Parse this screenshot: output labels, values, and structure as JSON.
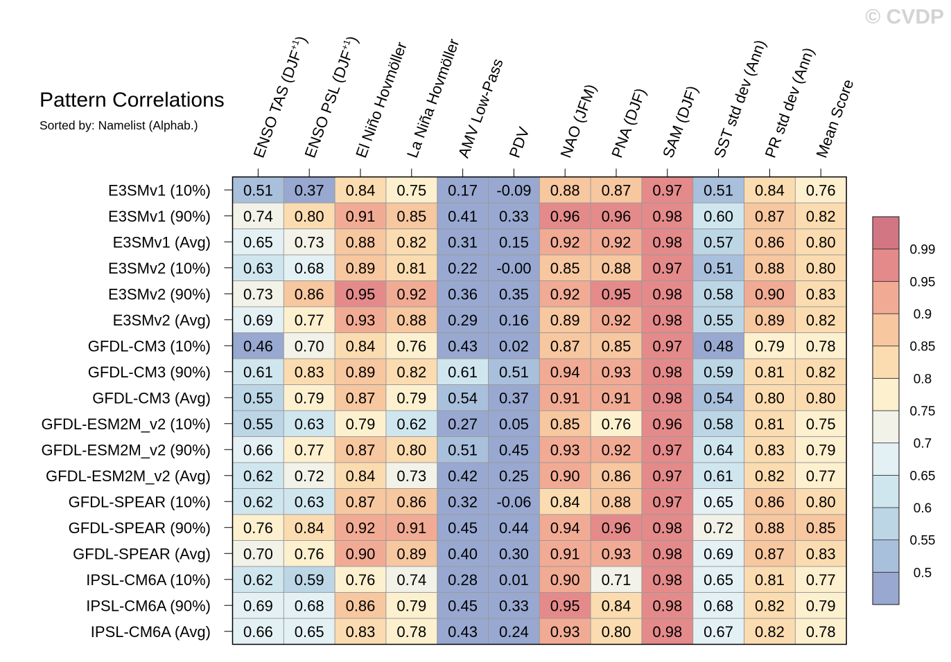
{
  "watermark": "© CVDP",
  "chart_data": {
    "type": "heatmap",
    "title": "Pattern Correlations",
    "subtitle": "Sorted by: Namelist (Alphab.)",
    "columns": [
      {
        "text": "ENSO TAS (DJF",
        "sup": "+1",
        "post": ")"
      },
      {
        "text": "ENSO PSL (DJF",
        "sup": "+1",
        "post": ")"
      },
      {
        "text": "El Niño Hovmöller"
      },
      {
        "text": "La Niña Hovmöller"
      },
      {
        "text": "AMV Low-Pass"
      },
      {
        "text": "PDV"
      },
      {
        "text": "NAO (JFM)"
      },
      {
        "text": "PNA (DJF)"
      },
      {
        "text": "SAM (DJF)"
      },
      {
        "text": "SST std dev (Ann)"
      },
      {
        "text": "PR std dev (Ann)"
      },
      {
        "text": "Mean Score"
      }
    ],
    "rows": [
      "E3SMv1 (10%)",
      "E3SMv1 (90%)",
      "E3SMv1 (Avg)",
      "E3SMv2 (10%)",
      "E3SMv2 (90%)",
      "E3SMv2 (Avg)",
      "GFDL-CM3 (10%)",
      "GFDL-CM3 (90%)",
      "GFDL-CM3 (Avg)",
      "GFDL-ESM2M_v2 (10%)",
      "GFDL-ESM2M_v2 (90%)",
      "GFDL-ESM2M_v2 (Avg)",
      "GFDL-SPEAR (10%)",
      "GFDL-SPEAR (90%)",
      "GFDL-SPEAR (Avg)",
      "IPSL-CM6A (10%)",
      "IPSL-CM6A (90%)",
      "IPSL-CM6A (Avg)"
    ],
    "values": [
      [
        "0.51",
        "0.37",
        "0.84",
        "0.75",
        "0.17",
        "-0.09",
        "0.88",
        "0.87",
        "0.97",
        "0.51",
        "0.84",
        "0.76"
      ],
      [
        "0.74",
        "0.80",
        "0.91",
        "0.85",
        "0.41",
        "0.33",
        "0.96",
        "0.96",
        "0.98",
        "0.60",
        "0.87",
        "0.82"
      ],
      [
        "0.65",
        "0.73",
        "0.88",
        "0.82",
        "0.31",
        "0.15",
        "0.92",
        "0.92",
        "0.98",
        "0.57",
        "0.86",
        "0.80"
      ],
      [
        "0.63",
        "0.68",
        "0.89",
        "0.81",
        "0.22",
        "-0.00",
        "0.85",
        "0.88",
        "0.97",
        "0.51",
        "0.88",
        "0.80"
      ],
      [
        "0.73",
        "0.86",
        "0.95",
        "0.92",
        "0.36",
        "0.35",
        "0.92",
        "0.95",
        "0.98",
        "0.58",
        "0.90",
        "0.83"
      ],
      [
        "0.69",
        "0.77",
        "0.93",
        "0.88",
        "0.29",
        "0.16",
        "0.89",
        "0.92",
        "0.98",
        "0.55",
        "0.89",
        "0.82"
      ],
      [
        "0.46",
        "0.70",
        "0.84",
        "0.76",
        "0.43",
        "0.02",
        "0.87",
        "0.85",
        "0.97",
        "0.48",
        "0.79",
        "0.78"
      ],
      [
        "0.61",
        "0.83",
        "0.89",
        "0.82",
        "0.61",
        "0.51",
        "0.94",
        "0.93",
        "0.98",
        "0.59",
        "0.81",
        "0.82"
      ],
      [
        "0.55",
        "0.79",
        "0.87",
        "0.79",
        "0.54",
        "0.37",
        "0.91",
        "0.91",
        "0.98",
        "0.54",
        "0.80",
        "0.80"
      ],
      [
        "0.55",
        "0.63",
        "0.79",
        "0.62",
        "0.27",
        "0.05",
        "0.85",
        "0.76",
        "0.96",
        "0.58",
        "0.81",
        "0.75"
      ],
      [
        "0.66",
        "0.77",
        "0.87",
        "0.80",
        "0.51",
        "0.45",
        "0.93",
        "0.92",
        "0.97",
        "0.64",
        "0.83",
        "0.79"
      ],
      [
        "0.62",
        "0.72",
        "0.84",
        "0.73",
        "0.42",
        "0.25",
        "0.90",
        "0.86",
        "0.97",
        "0.61",
        "0.82",
        "0.77"
      ],
      [
        "0.62",
        "0.63",
        "0.87",
        "0.86",
        "0.32",
        "-0.06",
        "0.84",
        "0.88",
        "0.97",
        "0.65",
        "0.86",
        "0.80"
      ],
      [
        "0.76",
        "0.84",
        "0.92",
        "0.91",
        "0.45",
        "0.44",
        "0.94",
        "0.96",
        "0.98",
        "0.72",
        "0.88",
        "0.85"
      ],
      [
        "0.70",
        "0.76",
        "0.90",
        "0.89",
        "0.40",
        "0.30",
        "0.91",
        "0.93",
        "0.98",
        "0.69",
        "0.87",
        "0.83"
      ],
      [
        "0.62",
        "0.59",
        "0.76",
        "0.74",
        "0.28",
        "0.01",
        "0.90",
        "0.71",
        "0.98",
        "0.65",
        "0.81",
        "0.77"
      ],
      [
        "0.69",
        "0.68",
        "0.86",
        "0.79",
        "0.45",
        "0.33",
        "0.95",
        "0.84",
        "0.98",
        "0.68",
        "0.82",
        "0.79"
      ],
      [
        "0.66",
        "0.65",
        "0.83",
        "0.78",
        "0.43",
        "0.24",
        "0.93",
        "0.80",
        "0.98",
        "0.67",
        "0.82",
        "0.78"
      ]
    ],
    "colorbar": {
      "levels": [
        "0.5",
        "0.55",
        "0.6",
        "0.65",
        "0.7",
        "0.75",
        "0.8",
        "0.85",
        "0.9",
        "0.95",
        "0.99"
      ],
      "thresholds": [
        0.5,
        0.55,
        0.6,
        0.65,
        0.7,
        0.75,
        0.8,
        0.85,
        0.9,
        0.95,
        0.99
      ],
      "colors": [
        "#98a8d0",
        "#a9c0dc",
        "#bcd6e6",
        "#d0e6ef",
        "#e4f1f4",
        "#f2f2e8",
        "#fdf0cf",
        "#fbdcb0",
        "#f7c7a0",
        "#f1ab94",
        "#e48a8a",
        "#d27684"
      ]
    }
  }
}
